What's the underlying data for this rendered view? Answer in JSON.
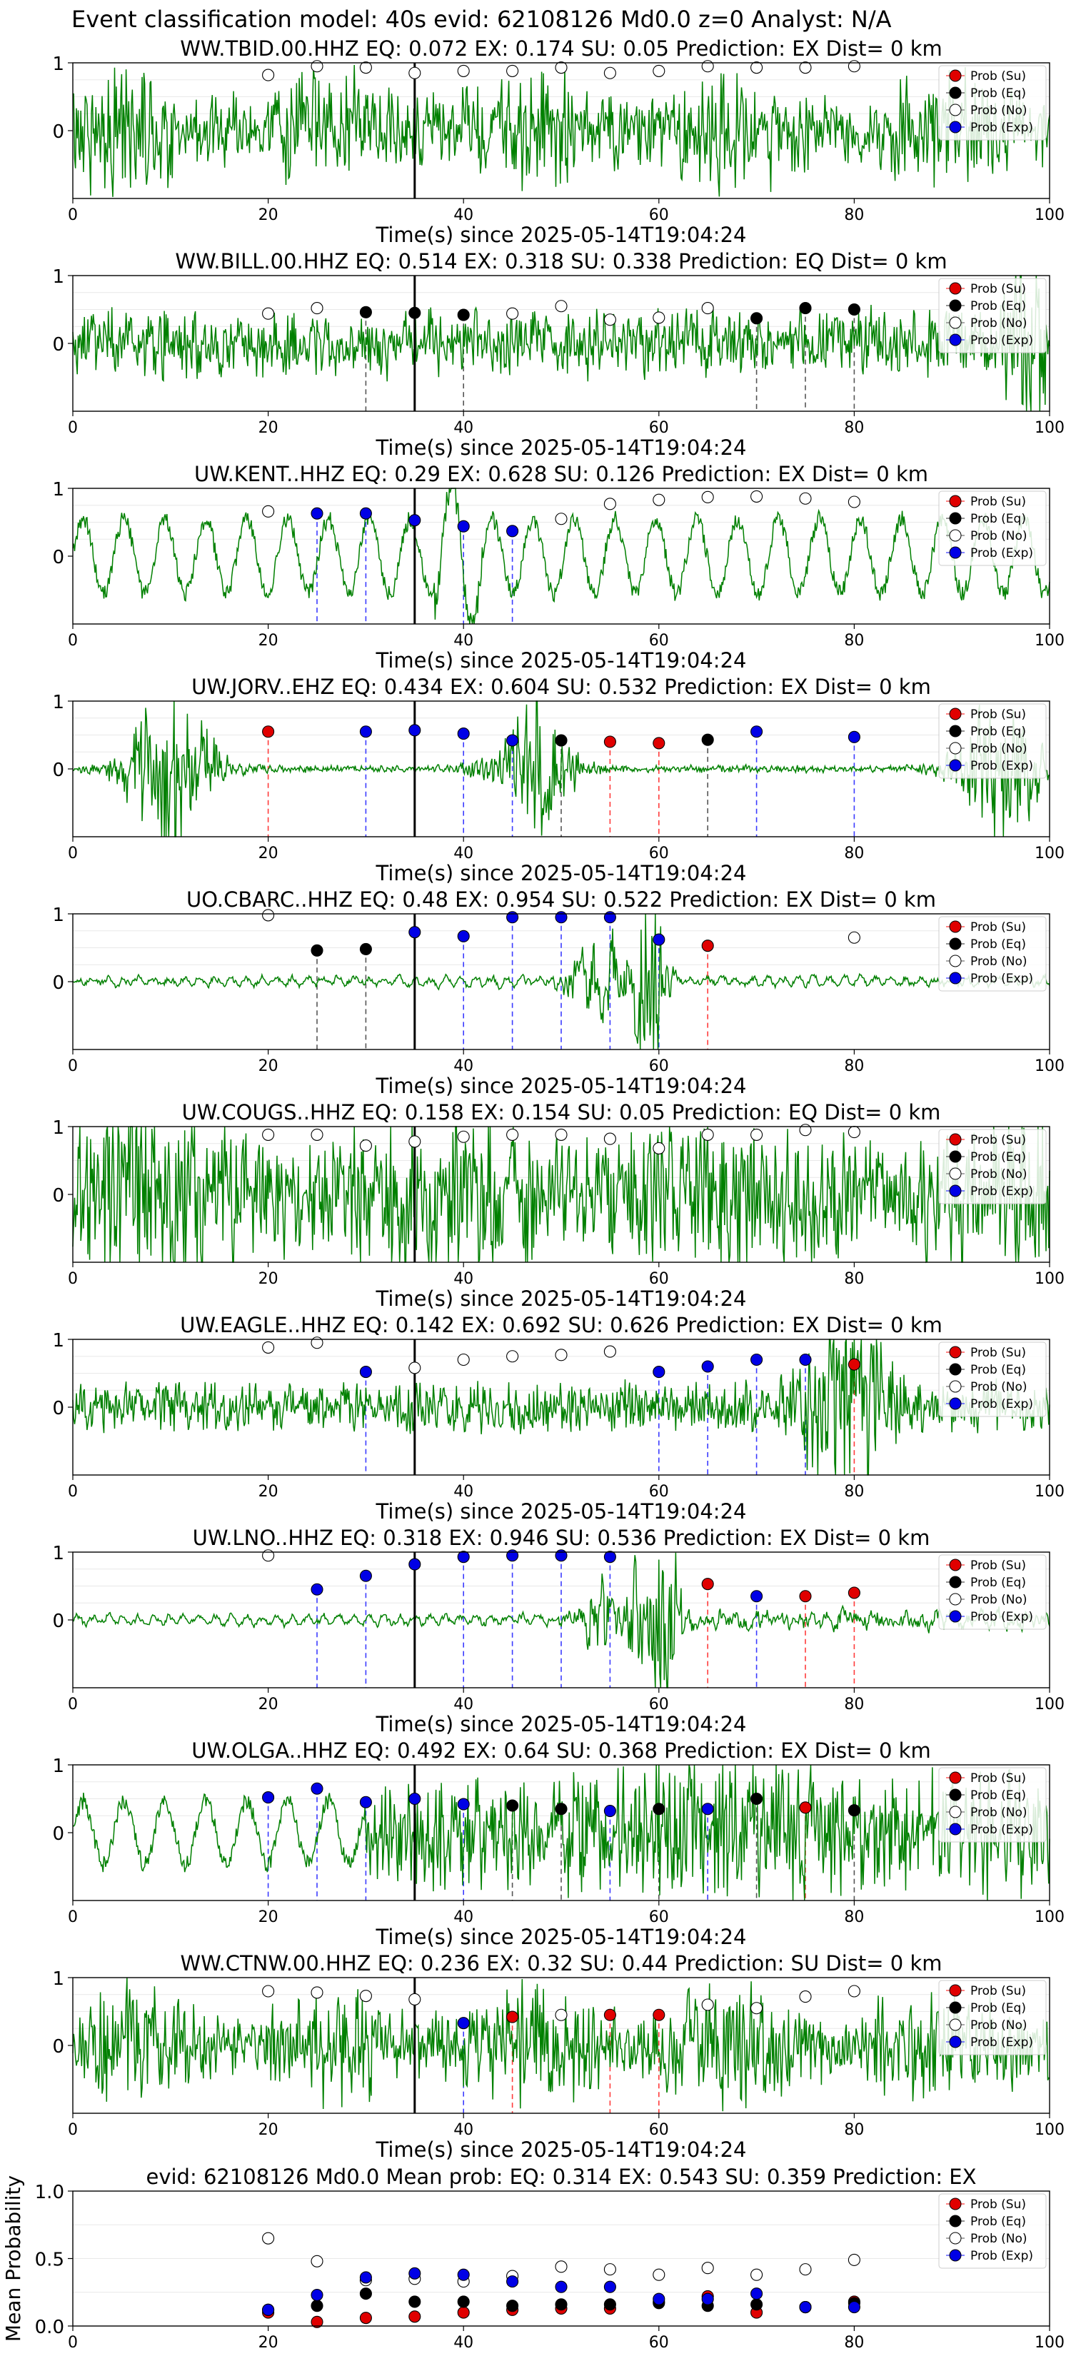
{
  "figure_title": "Event classification model: 40s evid: 62108126 Md0.0 z=0 Analyst: N/A",
  "colors": {
    "waveform": "#008000",
    "su": "#e00000",
    "eq": "#000000",
    "no": "#ffffff",
    "exp": "#0000e6"
  },
  "chart_data": [
    {
      "type": "line",
      "title": "WW.TBID.00.HHZ   EQ: 0.072  EX: 0.174  SU: 0.05   Prediction: EX    Dist= 0 km",
      "xlabel": "Time(s) since 2025-05-14T19:04:24",
      "xlim": [
        0,
        100
      ],
      "ylim": [
        -1,
        1
      ],
      "xticks": [
        "0",
        "20",
        "40",
        "60",
        "80",
        "100"
      ],
      "yticks": [
        "1",
        "0"
      ],
      "legend": [
        "Prob (Su)",
        "Prob (Eq)",
        "Prob (No)",
        "Prob (Exp)"
      ],
      "legend_loc": "upper right",
      "origin_x": 35,
      "waveform_profile": "noisy",
      "points": [
        {
          "x": 20,
          "y": 0.82,
          "cls": "no"
        },
        {
          "x": 25,
          "y": 0.95,
          "cls": "no"
        },
        {
          "x": 30,
          "y": 0.93,
          "cls": "no"
        },
        {
          "x": 35,
          "y": 0.85,
          "cls": "no"
        },
        {
          "x": 40,
          "y": 0.88,
          "cls": "no"
        },
        {
          "x": 45,
          "y": 0.88,
          "cls": "no"
        },
        {
          "x": 50,
          "y": 0.93,
          "cls": "no"
        },
        {
          "x": 55,
          "y": 0.85,
          "cls": "no"
        },
        {
          "x": 60,
          "y": 0.88,
          "cls": "no"
        },
        {
          "x": 65,
          "y": 0.95,
          "cls": "no"
        },
        {
          "x": 70,
          "y": 0.93,
          "cls": "no"
        },
        {
          "x": 75,
          "y": 0.93,
          "cls": "no"
        },
        {
          "x": 80,
          "y": 0.95,
          "cls": "no"
        }
      ]
    },
    {
      "type": "line",
      "title": "WW.BILL.00.HHZ   EQ: 0.514  EX: 0.318  SU: 0.338   Prediction: EQ    Dist= 0 km",
      "xlabel": "Time(s) since 2025-05-14T19:04:24",
      "xlim": [
        0,
        100
      ],
      "ylim": [
        -1,
        1
      ],
      "xticks": [
        "0",
        "20",
        "40",
        "60",
        "80",
        "100"
      ],
      "yticks": [
        "1",
        "0"
      ],
      "legend": [
        "Prob (Su)",
        "Prob (Eq)",
        "Prob (No)",
        "Prob (Exp)"
      ],
      "legend_loc": "upper right",
      "origin_x": 35,
      "waveform_profile": "medium",
      "points": [
        {
          "x": 20,
          "y": 0.44,
          "cls": "no"
        },
        {
          "x": 25,
          "y": 0.52,
          "cls": "no"
        },
        {
          "x": 30,
          "y": 0.46,
          "cls": "eq"
        },
        {
          "x": 35,
          "y": 0.45,
          "cls": "eq"
        },
        {
          "x": 40,
          "y": 0.42,
          "cls": "eq"
        },
        {
          "x": 45,
          "y": 0.44,
          "cls": "no"
        },
        {
          "x": 50,
          "y": 0.55,
          "cls": "no"
        },
        {
          "x": 55,
          "y": 0.35,
          "cls": "no"
        },
        {
          "x": 60,
          "y": 0.38,
          "cls": "no"
        },
        {
          "x": 65,
          "y": 0.52,
          "cls": "no"
        },
        {
          "x": 70,
          "y": 0.37,
          "cls": "eq"
        },
        {
          "x": 75,
          "y": 0.52,
          "cls": "eq"
        },
        {
          "x": 80,
          "y": 0.5,
          "cls": "eq"
        }
      ]
    },
    {
      "type": "line",
      "title": "UW.KENT..HHZ   EQ: 0.29  EX: 0.628  SU: 0.126   Prediction: EX    Dist= 0 km",
      "xlabel": "Time(s) since 2025-05-14T19:04:24",
      "xlim": [
        0,
        100
      ],
      "ylim": [
        -1,
        1
      ],
      "xticks": [
        "0",
        "20",
        "40",
        "60",
        "80",
        "100"
      ],
      "yticks": [
        "1",
        "0"
      ],
      "legend": [
        "Prob (Su)",
        "Prob (Eq)",
        "Prob (No)",
        "Prob (Exp)"
      ],
      "legend_loc": "upper right",
      "origin_x": 35,
      "waveform_profile": "slow",
      "points": [
        {
          "x": 20,
          "y": 0.66,
          "cls": "no"
        },
        {
          "x": 25,
          "y": 0.63,
          "cls": "exp"
        },
        {
          "x": 30,
          "y": 0.63,
          "cls": "exp"
        },
        {
          "x": 35,
          "y": 0.53,
          "cls": "exp"
        },
        {
          "x": 40,
          "y": 0.44,
          "cls": "exp"
        },
        {
          "x": 45,
          "y": 0.37,
          "cls": "exp"
        },
        {
          "x": 50,
          "y": 0.55,
          "cls": "no"
        },
        {
          "x": 55,
          "y": 0.77,
          "cls": "no"
        },
        {
          "x": 60,
          "y": 0.83,
          "cls": "no"
        },
        {
          "x": 65,
          "y": 0.87,
          "cls": "no"
        },
        {
          "x": 70,
          "y": 0.88,
          "cls": "no"
        },
        {
          "x": 75,
          "y": 0.85,
          "cls": "no"
        },
        {
          "x": 80,
          "y": 0.8,
          "cls": "no"
        }
      ]
    },
    {
      "type": "line",
      "title": "UW.JORV..EHZ   EQ: 0.434  EX: 0.604  SU: 0.532   Prediction: EX    Dist= 0 km",
      "xlabel": "Time(s) since 2025-05-14T19:04:24",
      "xlim": [
        0,
        100
      ],
      "ylim": [
        -1,
        1
      ],
      "xticks": [
        "0",
        "20",
        "40",
        "60",
        "80",
        "100"
      ],
      "yticks": [
        "1",
        "0"
      ],
      "legend": [
        "Prob (Su)",
        "Prob (Eq)",
        "Prob (No)",
        "Prob (Exp)"
      ],
      "legend_loc": "upper right",
      "origin_x": 35,
      "waveform_profile": "bursts",
      "points": [
        {
          "x": 20,
          "y": 0.55,
          "cls": "su"
        },
        {
          "x": 30,
          "y": 0.55,
          "cls": "exp"
        },
        {
          "x": 35,
          "y": 0.57,
          "cls": "exp"
        },
        {
          "x": 40,
          "y": 0.52,
          "cls": "exp"
        },
        {
          "x": 45,
          "y": 0.42,
          "cls": "exp"
        },
        {
          "x": 50,
          "y": 0.42,
          "cls": "eq"
        },
        {
          "x": 55,
          "y": 0.4,
          "cls": "su"
        },
        {
          "x": 60,
          "y": 0.38,
          "cls": "su"
        },
        {
          "x": 65,
          "y": 0.43,
          "cls": "eq"
        },
        {
          "x": 70,
          "y": 0.55,
          "cls": "exp"
        },
        {
          "x": 80,
          "y": 0.47,
          "cls": "exp"
        }
      ]
    },
    {
      "type": "line",
      "title": "UO.CBARC..HHZ   EQ: 0.48  EX: 0.954  SU: 0.522   Prediction: EX    Dist= 0 km",
      "xlabel": "Time(s) since 2025-05-14T19:04:24",
      "xlim": [
        0,
        100
      ],
      "ylim": [
        -1,
        1
      ],
      "xticks": [
        "0",
        "20",
        "40",
        "60",
        "80",
        "100"
      ],
      "yticks": [
        "1",
        "0"
      ],
      "legend": [
        "Prob (Su)",
        "Prob (Eq)",
        "Prob (No)",
        "Prob (Exp)"
      ],
      "legend_loc": "upper right",
      "origin_x": 35,
      "waveform_profile": "quiet_event",
      "points": [
        {
          "x": 20,
          "y": 0.98,
          "cls": "no"
        },
        {
          "x": 25,
          "y": 0.46,
          "cls": "eq"
        },
        {
          "x": 30,
          "y": 0.48,
          "cls": "eq"
        },
        {
          "x": 35,
          "y": 0.73,
          "cls": "exp"
        },
        {
          "x": 40,
          "y": 0.67,
          "cls": "exp"
        },
        {
          "x": 45,
          "y": 0.95,
          "cls": "exp"
        },
        {
          "x": 50,
          "y": 0.95,
          "cls": "exp"
        },
        {
          "x": 55,
          "y": 0.95,
          "cls": "exp"
        },
        {
          "x": 60,
          "y": 0.62,
          "cls": "exp"
        },
        {
          "x": 65,
          "y": 0.53,
          "cls": "su"
        },
        {
          "x": 80,
          "y": 0.65,
          "cls": "no"
        }
      ]
    },
    {
      "type": "line",
      "title": "UW.COUGS..HHZ   EQ: 0.158  EX: 0.154  SU: 0.05   Prediction: EQ    Dist= 0 km",
      "xlabel": "Time(s) since 2025-05-14T19:04:24",
      "xlim": [
        0,
        100
      ],
      "ylim": [
        -1,
        1
      ],
      "xticks": [
        "0",
        "20",
        "40",
        "60",
        "80",
        "100"
      ],
      "yticks": [
        "1",
        "0"
      ],
      "legend": [
        "Prob (Su)",
        "Prob (Eq)",
        "Prob (No)",
        "Prob (Exp)"
      ],
      "legend_loc": "upper right",
      "origin_x": 35,
      "waveform_profile": "very_noisy",
      "points": [
        {
          "x": 20,
          "y": 0.88,
          "cls": "no"
        },
        {
          "x": 25,
          "y": 0.88,
          "cls": "no"
        },
        {
          "x": 30,
          "y": 0.72,
          "cls": "no"
        },
        {
          "x": 35,
          "y": 0.78,
          "cls": "no"
        },
        {
          "x": 40,
          "y": 0.85,
          "cls": "no"
        },
        {
          "x": 45,
          "y": 0.88,
          "cls": "no"
        },
        {
          "x": 50,
          "y": 0.88,
          "cls": "no"
        },
        {
          "x": 55,
          "y": 0.82,
          "cls": "no"
        },
        {
          "x": 60,
          "y": 0.68,
          "cls": "no"
        },
        {
          "x": 65,
          "y": 0.88,
          "cls": "no"
        },
        {
          "x": 70,
          "y": 0.88,
          "cls": "no"
        },
        {
          "x": 75,
          "y": 0.95,
          "cls": "no"
        },
        {
          "x": 80,
          "y": 0.92,
          "cls": "no"
        }
      ]
    },
    {
      "type": "line",
      "title": "UW.EAGLE..HHZ   EQ: 0.142  EX: 0.692  SU: 0.626   Prediction: EX    Dist= 0 km",
      "xlabel": "Time(s) since 2025-05-14T19:04:24",
      "xlim": [
        0,
        100
      ],
      "ylim": [
        -1,
        1
      ],
      "xticks": [
        "0",
        "20",
        "40",
        "60",
        "80",
        "100"
      ],
      "yticks": [
        "1",
        "0"
      ],
      "legend": [
        "Prob (Su)",
        "Prob (Eq)",
        "Prob (No)",
        "Prob (Exp)"
      ],
      "legend_loc": "upper right",
      "origin_x": 35,
      "waveform_profile": "late_burst",
      "points": [
        {
          "x": 20,
          "y": 0.88,
          "cls": "no"
        },
        {
          "x": 25,
          "y": 0.95,
          "cls": "no"
        },
        {
          "x": 30,
          "y": 0.52,
          "cls": "exp"
        },
        {
          "x": 35,
          "y": 0.58,
          "cls": "no"
        },
        {
          "x": 40,
          "y": 0.7,
          "cls": "no"
        },
        {
          "x": 45,
          "y": 0.75,
          "cls": "no"
        },
        {
          "x": 50,
          "y": 0.77,
          "cls": "no"
        },
        {
          "x": 55,
          "y": 0.82,
          "cls": "no"
        },
        {
          "x": 60,
          "y": 0.52,
          "cls": "exp"
        },
        {
          "x": 65,
          "y": 0.6,
          "cls": "exp"
        },
        {
          "x": 70,
          "y": 0.7,
          "cls": "exp"
        },
        {
          "x": 75,
          "y": 0.7,
          "cls": "exp"
        },
        {
          "x": 80,
          "y": 0.63,
          "cls": "su"
        }
      ]
    },
    {
      "type": "line",
      "title": "UW.LNO..HHZ   EQ: 0.318  EX: 0.946  SU: 0.536   Prediction: EX    Dist= 0 km",
      "xlabel": "Time(s) since 2025-05-14T19:04:24",
      "xlim": [
        0,
        100
      ],
      "ylim": [
        -1,
        1
      ],
      "xticks": [
        "0",
        "20",
        "40",
        "60",
        "80",
        "100"
      ],
      "yticks": [
        "1",
        "0"
      ],
      "legend": [
        "Prob (Su)",
        "Prob (Eq)",
        "Prob (No)",
        "Prob (Exp)"
      ],
      "legend_loc": "upper right",
      "origin_x": 35,
      "waveform_profile": "quiet_big_event",
      "points": [
        {
          "x": 20,
          "y": 0.95,
          "cls": "no"
        },
        {
          "x": 25,
          "y": 0.45,
          "cls": "exp"
        },
        {
          "x": 30,
          "y": 0.65,
          "cls": "exp"
        },
        {
          "x": 35,
          "y": 0.82,
          "cls": "exp"
        },
        {
          "x": 40,
          "y": 0.93,
          "cls": "exp"
        },
        {
          "x": 45,
          "y": 0.95,
          "cls": "exp"
        },
        {
          "x": 50,
          "y": 0.95,
          "cls": "exp"
        },
        {
          "x": 55,
          "y": 0.93,
          "cls": "exp"
        },
        {
          "x": 65,
          "y": 0.53,
          "cls": "su"
        },
        {
          "x": 70,
          "y": 0.35,
          "cls": "exp"
        },
        {
          "x": 75,
          "y": 0.35,
          "cls": "su"
        },
        {
          "x": 80,
          "y": 0.4,
          "cls": "su"
        }
      ]
    },
    {
      "type": "line",
      "title": "UW.OLGA..HHZ   EQ: 0.492  EX: 0.64  SU: 0.368   Prediction: EX    Dist= 0 km",
      "xlabel": "Time(s) since 2025-05-14T19:04:24",
      "xlim": [
        0,
        100
      ],
      "ylim": [
        -1,
        1
      ],
      "xticks": [
        "0",
        "20",
        "40",
        "60",
        "80",
        "100"
      ],
      "yticks": [
        "1",
        "0"
      ],
      "legend": [
        "Prob (Su)",
        "Prob (Eq)",
        "Prob (No)",
        "Prob (Exp)"
      ],
      "legend_loc": "upper right",
      "origin_x": 35,
      "waveform_profile": "slow_then_noisy",
      "points": [
        {
          "x": 20,
          "y": 0.52,
          "cls": "exp"
        },
        {
          "x": 25,
          "y": 0.65,
          "cls": "exp"
        },
        {
          "x": 30,
          "y": 0.45,
          "cls": "exp"
        },
        {
          "x": 35,
          "y": 0.5,
          "cls": "exp"
        },
        {
          "x": 40,
          "y": 0.42,
          "cls": "exp"
        },
        {
          "x": 45,
          "y": 0.4,
          "cls": "eq"
        },
        {
          "x": 50,
          "y": 0.35,
          "cls": "eq"
        },
        {
          "x": 55,
          "y": 0.32,
          "cls": "exp"
        },
        {
          "x": 60,
          "y": 0.35,
          "cls": "eq"
        },
        {
          "x": 65,
          "y": 0.35,
          "cls": "exp"
        },
        {
          "x": 70,
          "y": 0.5,
          "cls": "eq"
        },
        {
          "x": 75,
          "y": 0.37,
          "cls": "su"
        },
        {
          "x": 80,
          "y": 0.33,
          "cls": "eq"
        }
      ]
    },
    {
      "type": "line",
      "title": "WW.CTNW.00.HHZ   EQ: 0.236  EX: 0.32  SU: 0.44   Prediction: SU    Dist= 0 km",
      "xlabel": "Time(s) since 2025-05-14T19:04:24",
      "xlim": [
        0,
        100
      ],
      "ylim": [
        -1,
        1
      ],
      "xticks": [
        "0",
        "20",
        "40",
        "60",
        "80",
        "100"
      ],
      "yticks": [
        "1",
        "0"
      ],
      "legend": [
        "Prob (Su)",
        "Prob (Eq)",
        "Prob (No)",
        "Prob (Exp)"
      ],
      "legend_loc": "upper right",
      "origin_x": 35,
      "waveform_profile": "noisy",
      "points": [
        {
          "x": 20,
          "y": 0.8,
          "cls": "no"
        },
        {
          "x": 25,
          "y": 0.78,
          "cls": "no"
        },
        {
          "x": 30,
          "y": 0.73,
          "cls": "no"
        },
        {
          "x": 35,
          "y": 0.68,
          "cls": "no"
        },
        {
          "x": 40,
          "y": 0.33,
          "cls": "exp"
        },
        {
          "x": 45,
          "y": 0.42,
          "cls": "su"
        },
        {
          "x": 50,
          "y": 0.45,
          "cls": "no"
        },
        {
          "x": 55,
          "y": 0.45,
          "cls": "su"
        },
        {
          "x": 60,
          "y": 0.45,
          "cls": "su"
        },
        {
          "x": 65,
          "y": 0.6,
          "cls": "no"
        },
        {
          "x": 70,
          "y": 0.55,
          "cls": "no"
        },
        {
          "x": 75,
          "y": 0.72,
          "cls": "no"
        },
        {
          "x": 80,
          "y": 0.8,
          "cls": "no"
        }
      ]
    },
    {
      "type": "scatter",
      "title": "evid: 62108126  Md0.0   Mean prob:    EQ: 0.314  EX: 0.543  SU: 0.359   Prediction: EX",
      "ylabel": "Mean Probability",
      "xlim": [
        0,
        100
      ],
      "ylim": [
        0,
        1
      ],
      "xticks": [
        "0",
        "20",
        "40",
        "60",
        "80",
        "100"
      ],
      "yticks": [
        "0.0",
        "0.5",
        "1.0"
      ],
      "legend": [
        "Prob (Su)",
        "Prob (Eq)",
        "Prob (No)",
        "Prob (Exp)"
      ],
      "legend_loc": "upper right",
      "x": [
        20,
        25,
        30,
        35,
        40,
        45,
        50,
        55,
        60,
        65,
        70,
        75,
        80
      ],
      "series": [
        {
          "cls": "su",
          "values": [
            0.1,
            0.03,
            0.06,
            0.07,
            0.1,
            0.12,
            0.13,
            0.13,
            0.18,
            0.22,
            0.1,
            0.14,
            0.18
          ]
        },
        {
          "cls": "eq",
          "values": [
            0.12,
            0.15,
            0.24,
            0.18,
            0.18,
            0.15,
            0.16,
            0.16,
            0.17,
            0.15,
            0.16,
            0.14,
            0.17
          ]
        },
        {
          "cls": "no",
          "values": [
            0.65,
            0.48,
            0.34,
            0.35,
            0.33,
            0.37,
            0.44,
            0.42,
            0.38,
            0.43,
            0.38,
            0.42,
            0.49
          ]
        },
        {
          "cls": "exp",
          "values": [
            0.12,
            0.23,
            0.36,
            0.39,
            0.38,
            0.33,
            0.29,
            0.29,
            0.2,
            0.2,
            0.24,
            0.14,
            0.14
          ]
        }
      ]
    }
  ]
}
